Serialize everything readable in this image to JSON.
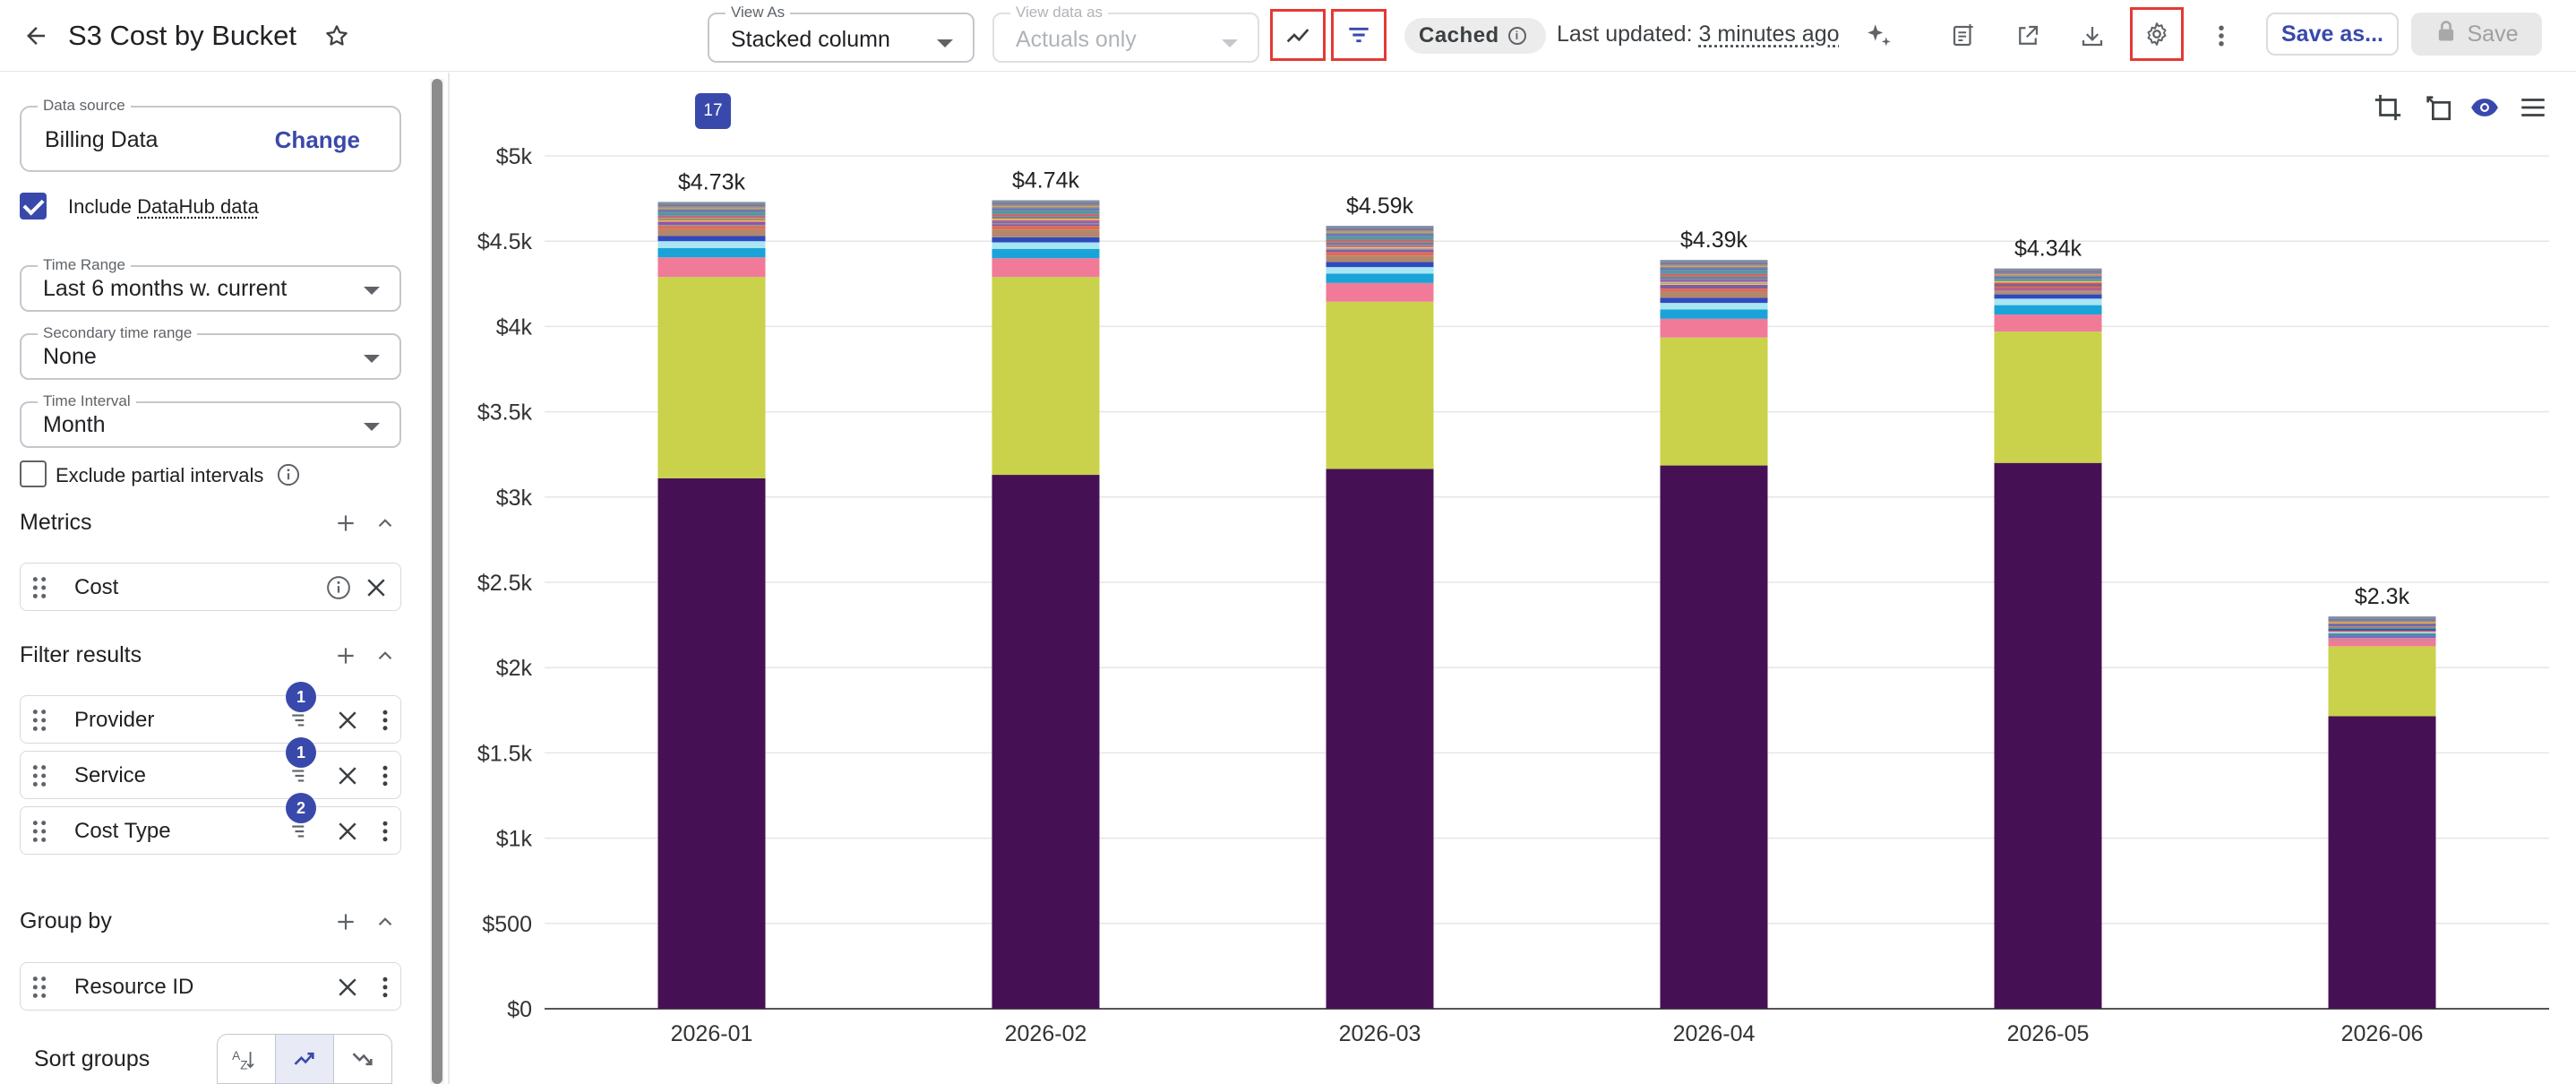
{
  "header": {
    "title": "S3 Cost by Bucket",
    "view_as_label": "View As",
    "view_as_value": "Stacked column",
    "view_data_as_label": "View data as",
    "view_data_as_value": "Actuals only",
    "cached_label": "Cached",
    "last_updated_prefix": "Last updated:",
    "last_updated_value": "3 minutes ago",
    "save_as_label": "Save as...",
    "save_label": "Save"
  },
  "sidebar": {
    "data_source_label": "Data source",
    "data_source_value": "Billing Data",
    "change_label": "Change",
    "include_prefix": "Include ",
    "include_datahub": "DataHub data",
    "time_range_label": "Time Range",
    "time_range_value": "Last 6 months w. current",
    "secondary_label": "Secondary time range",
    "secondary_value": "None",
    "interval_label": "Time Interval",
    "interval_value": "Month",
    "exclude_partial_label": "Exclude partial intervals",
    "metrics_title": "Metrics",
    "metrics": [
      {
        "label": "Cost"
      }
    ],
    "filters_title": "Filter results",
    "filters": [
      {
        "label": "Provider",
        "count": "1"
      },
      {
        "label": "Service",
        "count": "1"
      },
      {
        "label": "Cost Type",
        "count": "2"
      }
    ],
    "group_by_title": "Group by",
    "group_by": [
      {
        "label": "Resource ID"
      }
    ],
    "sort_label": "Sort groups",
    "sort_options": [
      "A-Z",
      "ascending",
      "descending"
    ],
    "sort_active": "ascending"
  },
  "chart": {
    "page_badge": "17"
  },
  "colors": {
    "accent": "#3949ab",
    "highlight": "#e53935"
  },
  "chart_data": {
    "type": "bar",
    "stacked": true,
    "categories": [
      "2026-01",
      "2026-02",
      "2026-03",
      "2026-04",
      "2026-05",
      "2026-06"
    ],
    "totals_labels": [
      "$4.73k",
      "$4.74k",
      "$4.59k",
      "$4.39k",
      "$4.34k",
      "$2.3k"
    ],
    "yticks": [
      "$0",
      "$500",
      "$1k",
      "$1.5k",
      "$2k",
      "$2.5k",
      "$3k",
      "$3.5k",
      "$4k",
      "$4.5k",
      "$5k"
    ],
    "ylim": [
      0,
      5000
    ],
    "grid": true,
    "series": [
      {
        "color": "#461154",
        "values": [
          3110,
          3130,
          3165,
          3185,
          3200,
          1715
        ]
      },
      {
        "color": "#c9d24a",
        "values": [
          1180,
          1160,
          980,
          750,
          770,
          410
        ]
      },
      {
        "color": "#f07a98",
        "values": [
          115,
          110,
          110,
          110,
          100,
          50
        ]
      },
      {
        "color": "#1aa3d9",
        "values": [
          55,
          55,
          55,
          55,
          55,
          25
        ]
      },
      {
        "color": "#a7e6f2",
        "values": [
          40,
          38,
          38,
          38,
          38,
          15
        ]
      },
      {
        "color": "#2f4abf",
        "values": [
          30,
          30,
          30,
          30,
          25,
          13
        ]
      },
      {
        "color": "#b3876b",
        "values": [
          40,
          45,
          38,
          36,
          32,
          14
        ]
      },
      {
        "color": "#e06a55",
        "values": [
          20,
          22,
          20,
          18,
          18,
          8
        ]
      },
      {
        "color": "#7b5ea7",
        "values": [
          25,
          25,
          22,
          22,
          20,
          8
        ]
      },
      {
        "color": "#f6c64f",
        "values": [
          18,
          18,
          16,
          16,
          14,
          7
        ]
      },
      {
        "color": "#7f8fa6",
        "values": [
          97,
          107,
          116,
          130,
          68,
          35
        ]
      }
    ]
  }
}
